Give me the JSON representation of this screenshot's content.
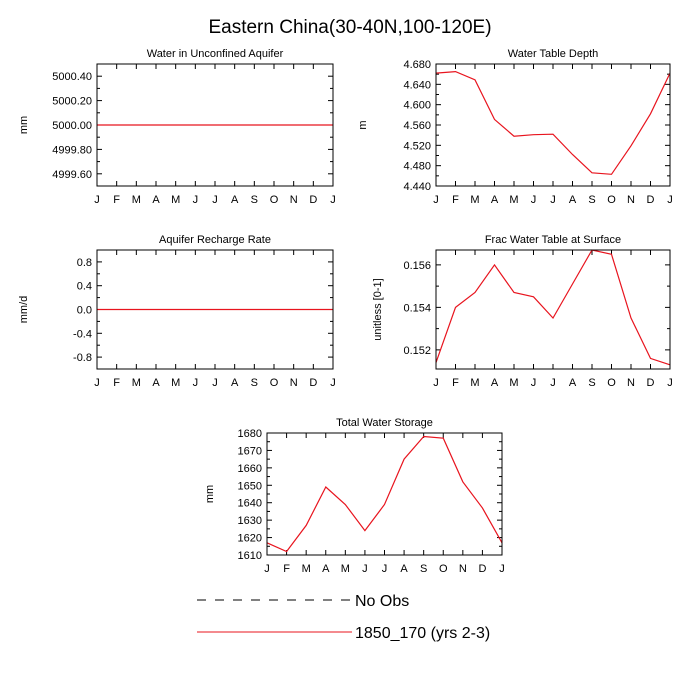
{
  "figure_title": "Eastern China(30-40N,100-120E)",
  "months": [
    "J",
    "F",
    "M",
    "A",
    "M",
    "J",
    "J",
    "A",
    "S",
    "O",
    "N",
    "D",
    "J"
  ],
  "chart_data": [
    {
      "type": "line",
      "title": "Water in Unconfined Aquifer",
      "ylabel": "mm",
      "ylim": [
        4999.5,
        5000.5
      ],
      "yticks": [
        4999.6,
        4999.8,
        5000.0,
        5000.2,
        5000.4
      ],
      "yticklabels": [
        "4999.60",
        "4999.80",
        "5000.00",
        "5000.20",
        "5000.40"
      ],
      "series": [
        {
          "name": "1850_170 (yrs 2-3)",
          "color": "#e8141e",
          "values": [
            5000,
            5000,
            5000,
            5000,
            5000,
            5000,
            5000,
            5000,
            5000,
            5000,
            5000,
            5000,
            5000
          ]
        }
      ]
    },
    {
      "type": "line",
      "title": "Water Table Depth",
      "ylabel": "m",
      "ylim": [
        4.44,
        4.68
      ],
      "yticks": [
        4.44,
        4.48,
        4.52,
        4.56,
        4.6,
        4.64,
        4.68
      ],
      "yticklabels": [
        "4.440",
        "4.480",
        "4.520",
        "4.560",
        "4.600",
        "4.640",
        "4.680"
      ],
      "series": [
        {
          "name": "1850_170 (yrs 2-3)",
          "color": "#e8141e",
          "values": [
            4.662,
            4.665,
            4.649,
            4.571,
            4.538,
            4.541,
            4.542,
            4.502,
            4.466,
            4.463,
            4.519,
            4.582,
            4.662
          ]
        }
      ]
    },
    {
      "type": "line",
      "title": "Aquifer Recharge Rate",
      "ylabel": "mm/d",
      "ylim": [
        -1.0,
        1.0
      ],
      "yticks": [
        -0.8,
        -0.4,
        0.0,
        0.4,
        0.8
      ],
      "yticklabels": [
        "-0.8",
        "-0.4",
        "0.0",
        "0.4",
        "0.8"
      ],
      "series": [
        {
          "name": "1850_170 (yrs 2-3)",
          "color": "#e8141e",
          "values": [
            0,
            0,
            0,
            0,
            0,
            0,
            0,
            0,
            0,
            0,
            0,
            0,
            0
          ]
        }
      ]
    },
    {
      "type": "line",
      "title": "Frac Water Table at Surface",
      "ylabel": "unitless [0-1]",
      "ylim": [
        0.1511,
        0.1567
      ],
      "yticks": [
        0.152,
        0.154,
        0.156
      ],
      "yticklabels": [
        "0.152",
        "0.154",
        "0.156"
      ],
      "series": [
        {
          "name": "1850_170 (yrs 2-3)",
          "color": "#e8141e",
          "values": [
            0.1514,
            0.154,
            0.1547,
            0.156,
            0.1547,
            0.1545,
            0.1535,
            0.1551,
            0.1567,
            0.1565,
            0.1535,
            0.1516,
            0.1513
          ]
        }
      ]
    },
    {
      "type": "line",
      "title": "Total Water Storage",
      "ylabel": "mm",
      "ylim": [
        1610,
        1680
      ],
      "yticks": [
        1610,
        1620,
        1630,
        1640,
        1650,
        1660,
        1670,
        1680
      ],
      "yticklabels": [
        "1610",
        "1620",
        "1630",
        "1640",
        "1650",
        "1660",
        "1670",
        "1680"
      ],
      "series": [
        {
          "name": "1850_170 (yrs 2-3)",
          "color": "#e8141e",
          "values": [
            1617,
            1612,
            1627,
            1649,
            1639,
            1624,
            1639,
            1665,
            1678,
            1677,
            1652,
            1637,
            1617
          ]
        }
      ]
    }
  ],
  "legend": [
    {
      "label": "No Obs",
      "style": "dashed",
      "color": "#000000"
    },
    {
      "label": "1850_170 (yrs 2-3)",
      "style": "solid",
      "color": "#e8141e"
    }
  ]
}
